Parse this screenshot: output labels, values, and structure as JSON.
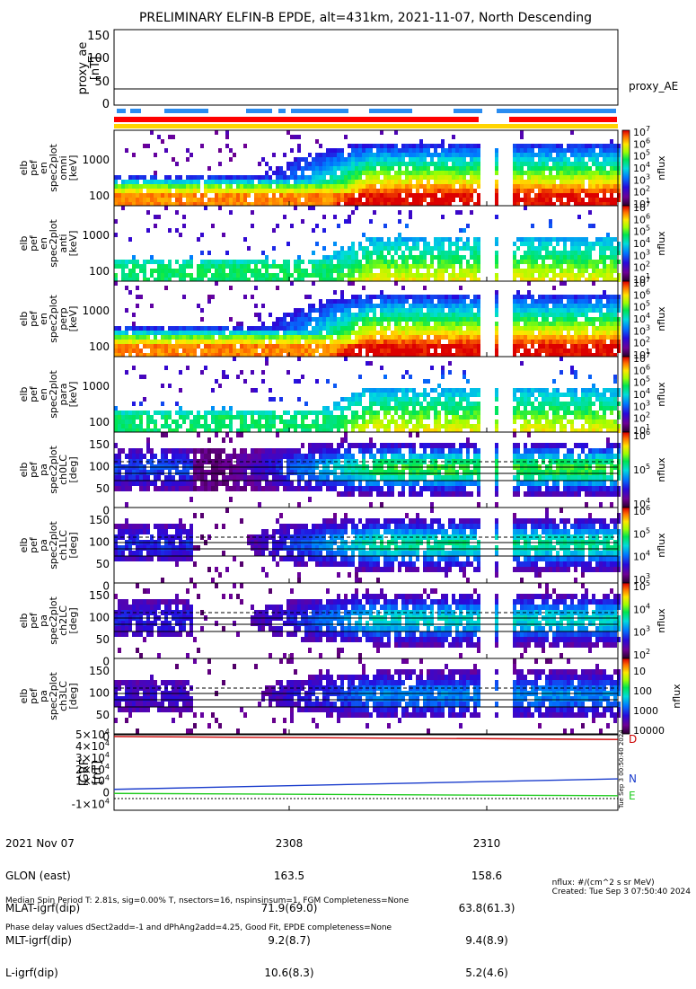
{
  "title": "PRELIMINARY ELFIN-B EPDE, alt=431km, 2021-11-07, North Descending",
  "proxy_panel": {
    "ylabel": [
      "proxy_ae",
      "[nT]"
    ],
    "yticks": [
      "150",
      "100",
      "50",
      "0"
    ],
    "ylim": [
      -5,
      155
    ],
    "line_value": 33,
    "legend": "proxy_AE"
  },
  "spectrum_panels": [
    {
      "ylabel": [
        "elb",
        "pef",
        "en",
        "spec2plot",
        "omni",
        "[keV]"
      ],
      "yticks": [
        "1000",
        "100"
      ]
    },
    {
      "ylabel": [
        "elb",
        "pef",
        "en",
        "spec2plot",
        "anti",
        "[keV]"
      ],
      "yticks": [
        "1000",
        "100"
      ]
    },
    {
      "ylabel": [
        "elb",
        "pef",
        "en",
        "spec2plot",
        "perp",
        "[keV]"
      ],
      "yticks": [
        "1000",
        "100"
      ]
    },
    {
      "ylabel": [
        "elb",
        "pef",
        "en",
        "spec2plot",
        "para",
        "[keV]"
      ],
      "yticks": [
        "1000",
        "100"
      ]
    }
  ],
  "pitch_panels": [
    {
      "ylabel": [
        "elb",
        "pef",
        "pa",
        "spec2plot",
        "ch0LC",
        "[deg]"
      ],
      "yticks": [
        "150",
        "100",
        "50",
        "0"
      ]
    },
    {
      "ylabel": [
        "elb",
        "pef",
        "pa",
        "spec2plot",
        "ch1LC",
        "[deg]"
      ],
      "yticks": [
        "150",
        "100",
        "50",
        "0"
      ]
    },
    {
      "ylabel": [
        "elb",
        "pef",
        "pa",
        "spec2plot",
        "ch2LC",
        "[deg]"
      ],
      "yticks": [
        "150",
        "100",
        "50",
        "0"
      ]
    },
    {
      "ylabel": [
        "elb",
        "pef",
        "pa",
        "spec2plot",
        "ch3LC",
        "[deg]"
      ],
      "yticks": [
        "150",
        "100",
        "50",
        "0"
      ]
    }
  ],
  "colorbars": [
    {
      "ticks": [
        "10",
        "10",
        "10",
        "10",
        "10",
        "10",
        "10"
      ],
      "exps": [
        "1",
        "2",
        "3",
        "4",
        "5",
        "6",
        "7"
      ],
      "label": "nflux"
    },
    {
      "ticks": [
        "10",
        "10",
        "10",
        "10",
        "10",
        "10",
        "10"
      ],
      "exps": [
        "1",
        "2",
        "3",
        "4",
        "5",
        "6",
        "7"
      ],
      "label": "nflux"
    },
    {
      "ticks": [
        "10",
        "10",
        "10",
        "10",
        "10",
        "10",
        "10"
      ],
      "exps": [
        "1",
        "2",
        "3",
        "4",
        "5",
        "6",
        "7"
      ],
      "label": "nflux"
    },
    {
      "ticks": [
        "10",
        "10",
        "10",
        "10",
        "10",
        "10",
        "10"
      ],
      "exps": [
        "1",
        "2",
        "3",
        "4",
        "5",
        "6",
        "7"
      ],
      "label": "nflux"
    },
    {
      "ticks": [
        "10",
        "10",
        "10"
      ],
      "exps": [
        "4",
        "5",
        "6"
      ],
      "label": "nflux"
    },
    {
      "ticks": [
        "10",
        "10",
        "10",
        "10"
      ],
      "exps": [
        "3",
        "4",
        "5",
        "6"
      ],
      "label": "nflux"
    },
    {
      "ticks": [
        "10",
        "10",
        "10",
        "10"
      ],
      "exps": [
        "2",
        "3",
        "4",
        "5"
      ],
      "label": "nflux"
    },
    {
      "ticks": [
        "10000",
        "1000",
        "100",
        "10"
      ],
      "exps": [
        "",
        "",
        "",
        ""
      ],
      "label": "nflux"
    }
  ],
  "igrf_panel": {
    "ylabel": [
      "IGRF",
      "[nT]"
    ],
    "yticks": [
      {
        "m": "5",
        "e": "4"
      },
      {
        "m": "4",
        "e": "4"
      },
      {
        "m": "3",
        "e": "4"
      },
      {
        "m": "2",
        "e": "4"
      },
      {
        "m": "1",
        "e": "4"
      },
      {
        "m": "0",
        "e": ""
      },
      {
        "m": "-1",
        "e": "4"
      }
    ],
    "ylim": [
      -15000,
      50000
    ],
    "series": [
      {
        "name": "D",
        "color": "#cc0000",
        "start": 48500,
        "end": 46000
      },
      {
        "name": "N",
        "color": "#1a3ccc",
        "start": 3000,
        "end": 12000
      },
      {
        "name": "E",
        "color": "#22cc22",
        "start": -500,
        "end": -2500
      }
    ],
    "side_text": "Tue Sep 3 00:50:40 2024"
  },
  "x_axis": {
    "ticks": [
      "2308",
      "2310"
    ]
  },
  "ephemeris": [
    {
      "label": "2021 Nov 07",
      "v1": "2308",
      "v2": "2310"
    },
    {
      "label": "GLON (east)",
      "v1": "163.5",
      "v2": "158.6"
    },
    {
      "label": "MLAT-igrf(dip)",
      "v1": "71.9(69.0)",
      "v2": "63.8(61.3)"
    },
    {
      "label": "MLT-igrf(dip)",
      "v1": "9.2(8.7)",
      "v2": "9.4(8.9)"
    },
    {
      "label": "L-igrf(dip)",
      "v1": "10.6(8.3)",
      "v2": "5.2(4.6)"
    }
  ],
  "footer": {
    "line1": "Median Spin Period T: 2.81s, sig=0.00% T, nsectors=16, nspinsinsum=1, FGM Completeness=None",
    "line2": "Phase delay values dSect2add=-1 and dPhAng2add=4.25, Good Fit, EPDE completeness=None",
    "units": "nflux: #/(cm^2 s sr MeV)",
    "created": "Created: Tue Sep  3 07:50:40 2024"
  },
  "colors": {
    "blue_bar": "#2a8cf0",
    "red_bar": "#ff0000",
    "yellow_bar": "#ffd400"
  }
}
